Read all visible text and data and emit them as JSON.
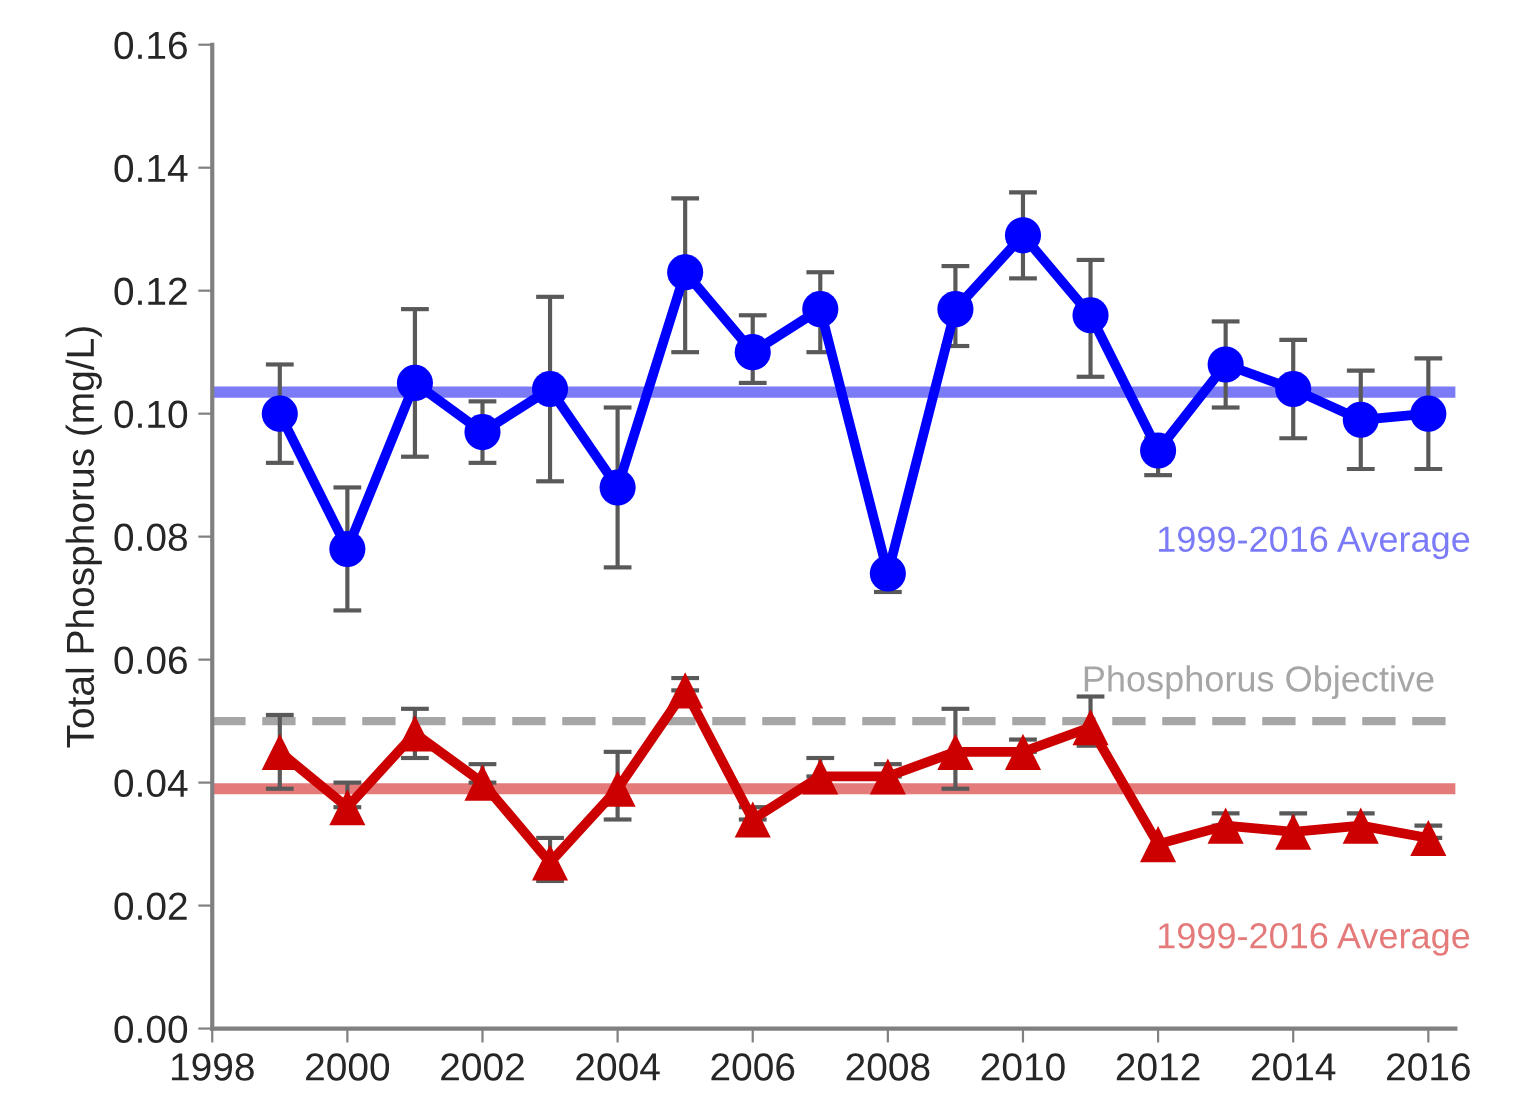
{
  "chart_data": {
    "type": "line",
    "ylabel": "Total Phosphorus (mg/L)",
    "x": [
      1999,
      2000,
      2001,
      2002,
      2003,
      2004,
      2005,
      2006,
      2007,
      2008,
      2009,
      2010,
      2011,
      2012,
      2013,
      2014,
      2015,
      2016
    ],
    "series": [
      {
        "color": "#0000ff",
        "marker": "circle",
        "values": [
          0.1,
          0.078,
          0.105,
          0.097,
          0.104,
          0.088,
          0.123,
          0.11,
          0.117,
          0.074,
          0.117,
          0.129,
          0.116,
          0.094,
          0.108,
          0.104,
          0.099,
          0.1
        ],
        "errors": [
          [
            0.092,
            0.108
          ],
          [
            0.068,
            0.088
          ],
          [
            0.093,
            0.117
          ],
          [
            0.092,
            0.102
          ],
          [
            0.089,
            0.119
          ],
          [
            0.075,
            0.101
          ],
          [
            0.11,
            0.135
          ],
          [
            0.105,
            0.116
          ],
          [
            0.11,
            0.123
          ],
          [
            0.071,
            0.074
          ],
          [
            0.111,
            0.124
          ],
          [
            0.122,
            0.136
          ],
          [
            0.106,
            0.125
          ],
          [
            0.09,
            0.096
          ],
          [
            0.101,
            0.115
          ],
          [
            0.096,
            0.112
          ],
          [
            0.091,
            0.107
          ],
          [
            0.091,
            0.109
          ]
        ]
      },
      {
        "color": "#cc0000",
        "marker": "triangle",
        "values": [
          0.045,
          0.036,
          0.048,
          0.04,
          0.027,
          0.039,
          0.055,
          0.034,
          0.041,
          0.041,
          0.045,
          0.045,
          0.049,
          0.03,
          0.033,
          0.032,
          0.033,
          0.031
        ],
        "errors": [
          [
            0.039,
            0.051
          ],
          [
            0.036,
            0.04
          ],
          [
            0.044,
            0.052
          ],
          [
            0.04,
            0.043
          ],
          [
            0.024,
            0.031
          ],
          [
            0.034,
            0.045
          ],
          [
            0.055,
            0.057
          ],
          [
            0.034,
            0.036
          ],
          [
            0.041,
            0.044
          ],
          [
            0.041,
            0.043
          ],
          [
            0.039,
            0.052
          ],
          [
            0.045,
            0.047
          ],
          [
            0.046,
            0.054
          ],
          null,
          [
            0.033,
            0.035
          ],
          [
            0.032,
            0.035
          ],
          [
            0.033,
            0.035
          ],
          [
            0.031,
            0.033
          ]
        ]
      }
    ],
    "ref_lines": [
      {
        "axis": "y",
        "value": 0.1035,
        "label": "1999-2016 Average",
        "color": "#7b7bf7",
        "line_style": "solid"
      },
      {
        "axis": "y",
        "value": 0.05,
        "label": "Phosphorus Objective",
        "color": "#a6a6a6",
        "line_style": "dashed"
      },
      {
        "axis": "y",
        "value": 0.039,
        "label": "1999-2016 Average",
        "color": "#e47a7a",
        "line_style": "solid"
      }
    ],
    "xlim": [
      1998,
      2016.4
    ],
    "xticks": [
      1998,
      2000,
      2002,
      2004,
      2006,
      2008,
      2010,
      2012,
      2014,
      2016
    ],
    "ylim": [
      0,
      0.16
    ],
    "yticks": [
      {
        "value": 0,
        "label": "0.00"
      },
      {
        "value": 0.02,
        "label": "0.02"
      },
      {
        "value": 0.04,
        "label": "0.04"
      },
      {
        "value": 0.06,
        "label": "0.06"
      },
      {
        "value": 0.08,
        "label": "0.08"
      },
      {
        "value": 0.1,
        "label": "0.10"
      },
      {
        "value": 0.12,
        "label": "0.12"
      },
      {
        "value": 0.14,
        "label": "0.14"
      },
      {
        "value": 0.16,
        "label": "0.16"
      }
    ],
    "grid": false,
    "legend": false
  }
}
